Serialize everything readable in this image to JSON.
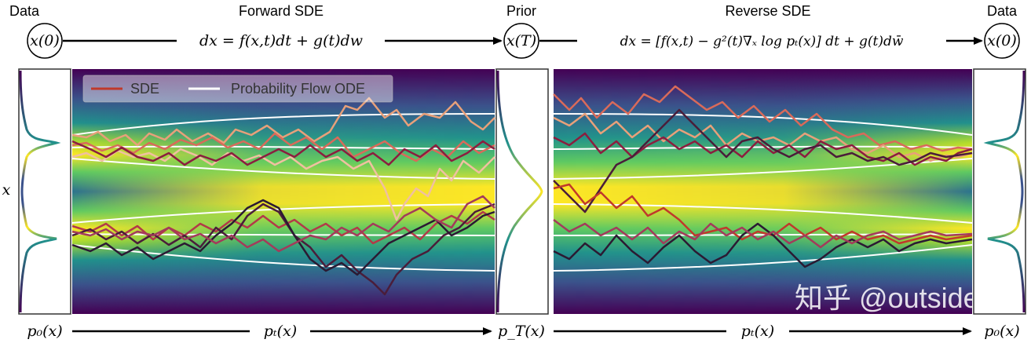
{
  "header": {
    "left_label": "Data",
    "forward_label": "Forward SDE",
    "prior_label": "Prior",
    "reverse_label": "Reverse SDE",
    "right_label": "Data"
  },
  "nodes": {
    "x0_left": "x(0)",
    "xT": "x(T)",
    "x0_right": "x(0)"
  },
  "equations": {
    "forward": "dx = f(x,t)dt + g(t)dw",
    "reverse": "dx = [f(x,t) − g²(t)∇ₓ log pₜ(x)] dt + g(t)dw̄"
  },
  "axis": {
    "y_label": "x"
  },
  "bottom": {
    "p0_left": "p₀(x)",
    "pt_left": "pₜ(x)",
    "pT": "p_T(x)",
    "pt_right": "pₜ(x)",
    "p0_right": "p₀(x)"
  },
  "legend": {
    "sde": "SDE",
    "ode": "Probability Flow ODE"
  },
  "watermark": "知乎 @outside",
  "colors": {
    "viridis_dark": "#440154",
    "viridis_mid": "#21918c",
    "viridis_yellow": "#fde725",
    "sde_line": "#c0392b",
    "ode_line": "#ffffff"
  }
}
